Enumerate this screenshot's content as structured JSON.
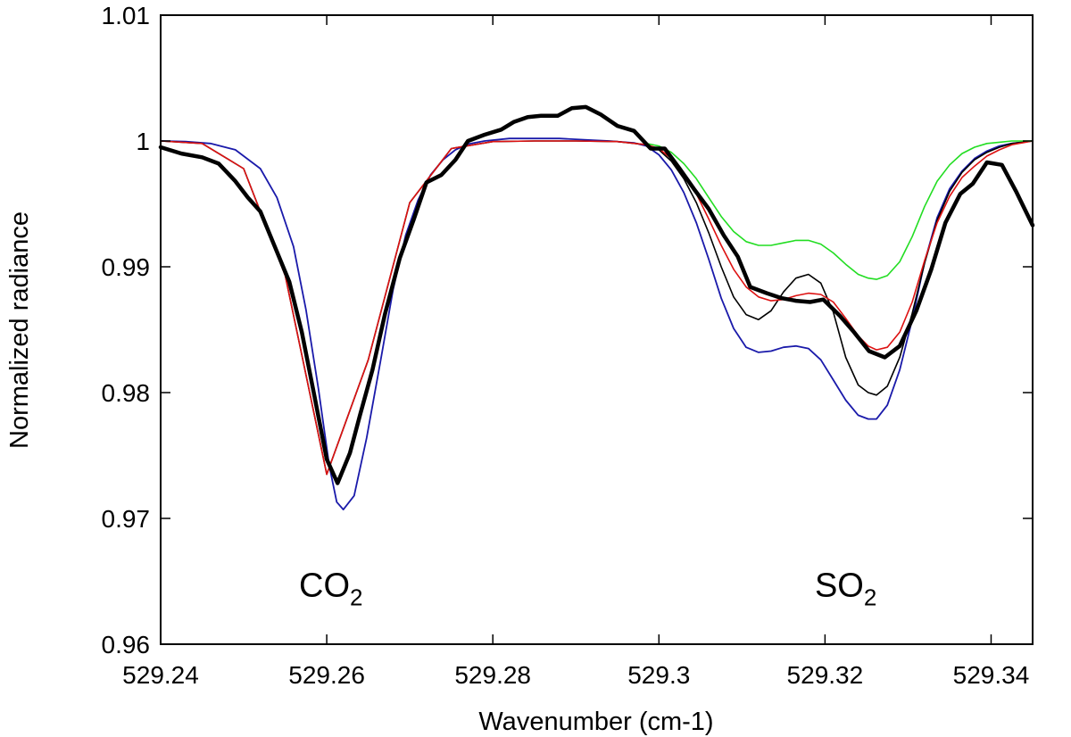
{
  "chart_data": {
    "type": "line",
    "title": "",
    "xlabel": "Wavenumber (cm-1)",
    "ylabel": "Normalized radiance",
    "xlim": [
      529.24,
      529.345
    ],
    "ylim": [
      0.96,
      1.01
    ],
    "xticks": [
      529.24,
      529.26,
      529.28,
      529.3,
      529.32,
      529.34
    ],
    "xtick_labels": [
      "529.24",
      "529.26",
      "529.28",
      "529.3",
      "529.32",
      "529.34"
    ],
    "yticks": [
      0.96,
      0.97,
      0.98,
      0.99,
      1.0,
      1.01
    ],
    "ytick_labels": [
      "0.96",
      "0.97",
      "0.98",
      "0.99",
      "1",
      "1.01"
    ],
    "grid": false,
    "legend": "none",
    "annotations": [
      {
        "main": "CO",
        "sub": "2",
        "x": 529.2605,
        "y": 0.9638
      },
      {
        "main": "SO",
        "sub": "2",
        "x": 529.3225,
        "y": 0.9638
      }
    ],
    "series": [
      {
        "color": "#000000",
        "width": 4.5,
        "x": [
          529.24,
          529.2425,
          529.245,
          529.247,
          529.249,
          529.2505,
          529.252,
          529.2535,
          529.2555,
          529.257,
          529.2585,
          529.26,
          529.2613,
          529.2628,
          529.264,
          529.2655,
          529.267,
          529.2688,
          529.2705,
          529.272,
          529.2738,
          529.2755,
          529.277,
          529.279,
          529.281,
          529.2825,
          529.2842,
          529.2858,
          529.2878,
          529.2895,
          529.2912,
          529.293,
          529.295,
          529.297,
          529.299,
          529.3007,
          529.3025,
          529.3042,
          529.306,
          529.3078,
          529.3095,
          529.311,
          529.313,
          529.3148,
          529.3165,
          529.3182,
          529.3198,
          529.3218,
          529.3235,
          529.3253,
          529.3272,
          529.329,
          529.331,
          529.3328,
          529.3345,
          529.3363,
          529.3378,
          529.3395,
          529.3413,
          529.343,
          529.345
        ],
        "y": [
          0.9995,
          0.999,
          0.9987,
          0.9982,
          0.9968,
          0.9955,
          0.9944,
          0.992,
          0.9888,
          0.9848,
          0.9798,
          0.9747,
          0.9728,
          0.9752,
          0.9782,
          0.9818,
          0.9862,
          0.9907,
          0.9938,
          0.9967,
          0.9973,
          0.9985,
          1.0,
          1.0005,
          1.0009,
          1.0015,
          1.0019,
          1.002,
          1.002,
          1.0026,
          1.0027,
          1.0021,
          1.0012,
          1.0008,
          0.9994,
          0.9994,
          0.9978,
          0.9962,
          0.9946,
          0.9925,
          0.9908,
          0.9884,
          0.9879,
          0.9875,
          0.9873,
          0.9872,
          0.9874,
          0.9861,
          0.9848,
          0.9833,
          0.9828,
          0.9837,
          0.9865,
          0.9898,
          0.9935,
          0.9958,
          0.9966,
          0.9983,
          0.9981,
          0.996,
          0.9933
        ]
      },
      {
        "color": "#1a1aaa",
        "width": 1.8,
        "x": [
          529.24,
          529.243,
          529.246,
          529.249,
          529.252,
          529.254,
          529.256,
          529.2575,
          529.259,
          529.2603,
          529.2612,
          529.262,
          529.2633,
          529.2648,
          529.2665,
          529.268,
          529.2695,
          529.271,
          529.2725,
          529.274,
          529.2755,
          529.277,
          529.279,
          529.282,
          529.285,
          529.288,
          529.291,
          529.294,
          529.297,
          529.2985,
          529.3,
          529.3015,
          529.303,
          529.3045,
          529.306,
          529.3075,
          529.309,
          529.3105,
          529.312,
          529.3135,
          529.315,
          529.3165,
          529.318,
          529.3195,
          529.321,
          529.3225,
          529.324,
          529.3252,
          529.3262,
          529.3275,
          529.329,
          529.3305,
          529.332,
          529.3335,
          529.335,
          529.3365,
          529.338,
          529.3395,
          529.341,
          529.3425,
          529.345
        ],
        "y": [
          1.0,
          0.99995,
          0.9998,
          0.9993,
          0.9978,
          0.9955,
          0.9916,
          0.9866,
          0.9803,
          0.9742,
          0.9713,
          0.9707,
          0.9718,
          0.9764,
          0.9826,
          0.9882,
          0.9925,
          0.9953,
          0.9973,
          0.9985,
          0.9993,
          0.99975,
          1.0,
          1.0002,
          1.0002,
          1.0002,
          1.0001,
          1.0,
          0.99985,
          0.9996,
          0.9989,
          0.9977,
          0.9959,
          0.9935,
          0.9906,
          0.9875,
          0.9851,
          0.9836,
          0.9832,
          0.9833,
          0.9836,
          0.9837,
          0.9835,
          0.9826,
          0.981,
          0.9794,
          0.9782,
          0.9779,
          0.9779,
          0.979,
          0.9818,
          0.9858,
          0.9904,
          0.9939,
          0.9962,
          0.9976,
          0.9986,
          0.9992,
          0.9996,
          0.9998,
          1.0
        ]
      },
      {
        "color": "#000000",
        "width": 1.6,
        "x": [
          529.24,
          529.245,
          529.25,
          529.255,
          529.26,
          529.265,
          529.27,
          529.275,
          529.28,
          529.285,
          529.29,
          529.295,
          529.2985,
          529.3,
          529.3015,
          529.303,
          529.3045,
          529.306,
          529.3075,
          529.309,
          529.3105,
          529.312,
          529.3135,
          529.315,
          529.3165,
          529.318,
          529.3195,
          529.321,
          529.3225,
          529.324,
          529.3252,
          529.3262,
          529.3275,
          529.329,
          529.3305,
          529.332,
          529.3335,
          529.335,
          529.3365,
          529.338,
          529.3395,
          529.341,
          529.3425,
          529.345
        ],
        "y": [
          1.0,
          0.9998,
          0.9978,
          0.9893,
          0.9735,
          0.9826,
          0.9951,
          0.9994,
          0.99995,
          1.0,
          1.0,
          0.99995,
          0.9997,
          0.9993,
          0.9984,
          0.997,
          0.9951,
          0.9927,
          0.99,
          0.9876,
          0.9862,
          0.9858,
          0.9865,
          0.988,
          0.9891,
          0.9894,
          0.9887,
          0.9864,
          0.9828,
          0.9806,
          0.98,
          0.9798,
          0.9805,
          0.9828,
          0.9863,
          0.9903,
          0.9937,
          0.996,
          0.9975,
          0.9985,
          0.9991,
          0.9995,
          0.9998,
          1.0
        ]
      },
      {
        "color": "#dd1111",
        "width": 1.6,
        "x": [
          529.24,
          529.245,
          529.25,
          529.255,
          529.26,
          529.265,
          529.27,
          529.275,
          529.28,
          529.285,
          529.29,
          529.295,
          529.2985,
          529.3,
          529.3015,
          529.303,
          529.3045,
          529.306,
          529.3075,
          529.309,
          529.3105,
          529.312,
          529.3135,
          529.315,
          529.3165,
          529.318,
          529.3195,
          529.321,
          529.3225,
          529.324,
          529.3252,
          529.3262,
          529.3275,
          529.329,
          529.3305,
          529.332,
          529.3335,
          529.335,
          529.3365,
          529.338,
          529.3395,
          529.341,
          529.3425,
          529.345
        ],
        "y": [
          1.0,
          0.9998,
          0.9978,
          0.9893,
          0.9735,
          0.9826,
          0.9951,
          0.9994,
          0.99995,
          1.0,
          1.0,
          0.99995,
          0.9997,
          0.9994,
          0.9986,
          0.9974,
          0.9958,
          0.9938,
          0.9917,
          0.9898,
          0.9884,
          0.9876,
          0.9873,
          0.9874,
          0.9877,
          0.9879,
          0.9878,
          0.9872,
          0.9859,
          0.9845,
          0.9837,
          0.9834,
          0.9836,
          0.9848,
          0.9872,
          0.9905,
          0.9935,
          0.9956,
          0.9971,
          0.998,
          0.9988,
          0.9993,
          0.9997,
          1.0
        ]
      },
      {
        "color": "#22dd22",
        "width": 1.6,
        "x": [
          529.2985,
          529.3,
          529.3015,
          529.303,
          529.3045,
          529.306,
          529.3075,
          529.309,
          529.3105,
          529.312,
          529.3135,
          529.315,
          529.3165,
          529.318,
          529.3195,
          529.321,
          529.3225,
          529.324,
          529.3252,
          529.3262,
          529.3275,
          529.329,
          529.3305,
          529.332,
          529.3335,
          529.335,
          529.3365,
          529.338,
          529.3395,
          529.341,
          529.3425,
          529.345
        ],
        "y": [
          0.9998,
          0.9996,
          0.9991,
          0.9982,
          0.997,
          0.9955,
          0.994,
          0.9928,
          0.992,
          0.9917,
          0.9917,
          0.9919,
          0.9921,
          0.9921,
          0.9918,
          0.9911,
          0.9902,
          0.9894,
          0.9891,
          0.989,
          0.9893,
          0.9904,
          0.9924,
          0.9948,
          0.9968,
          0.9981,
          0.999,
          0.9995,
          0.9998,
          0.9999,
          1.0,
          1.0
        ]
      }
    ]
  }
}
